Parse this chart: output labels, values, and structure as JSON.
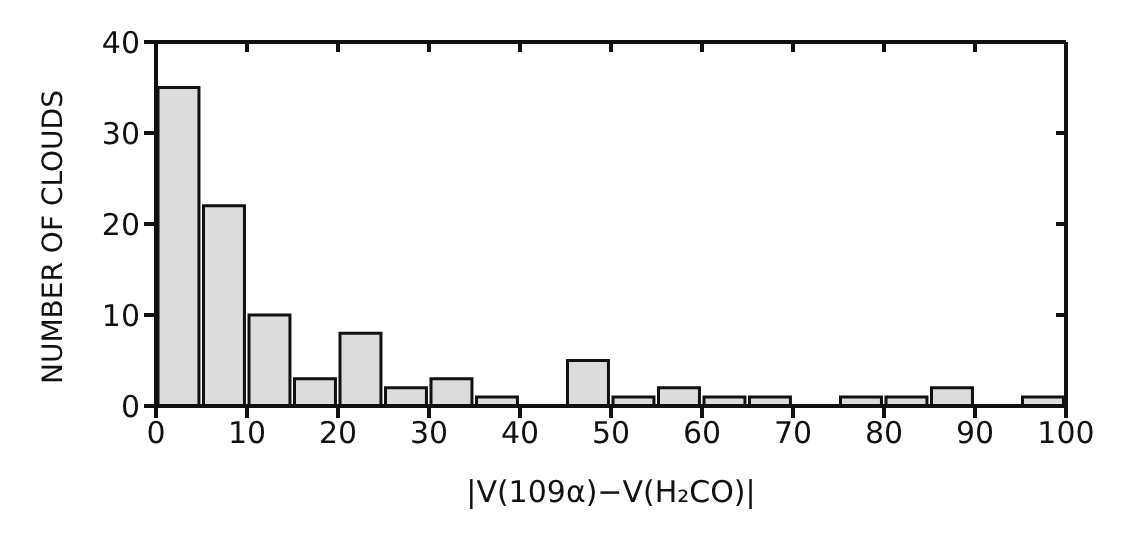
{
  "chart_data": {
    "type": "histogram",
    "xlabel": "|V(109α)−V(H₂CO)|",
    "ylabel": "NUMBER OF CLOUDS",
    "bins": [
      0,
      5,
      10,
      15,
      20,
      25,
      30,
      35,
      40,
      45,
      50,
      55,
      60,
      65,
      70,
      75,
      80,
      85,
      90,
      95,
      100
    ],
    "values": [
      35,
      22,
      10,
      3,
      8,
      2,
      3,
      1,
      0,
      5,
      1,
      2,
      1,
      1,
      0,
      1,
      1,
      2,
      0,
      1
    ],
    "color": "#dcdcdc",
    "xlim": [
      0,
      100
    ],
    "xticks": [
      0,
      10,
      20,
      30,
      40,
      50,
      60,
      70,
      80,
      90,
      100
    ],
    "ylim": [
      0,
      40
    ],
    "yticks": [
      0,
      10,
      20,
      30,
      40
    ],
    "grid": false
  }
}
